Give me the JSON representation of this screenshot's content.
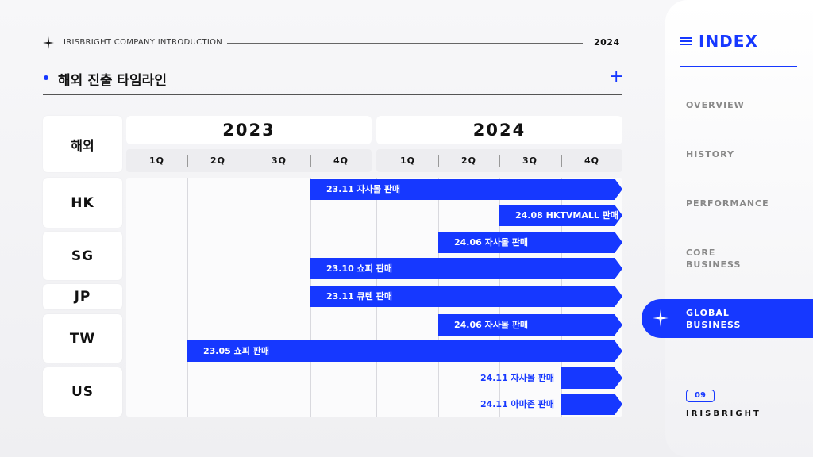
{
  "header": {
    "company": "IRISBRIGHT COMPANY INTRODUCTION",
    "year": "2024",
    "title": "해외 진출 타임라인",
    "plus_icon": "plus-icon"
  },
  "timeline": {
    "column_header": "해외",
    "years": [
      "2023",
      "2024"
    ],
    "quarters": [
      "1Q",
      "2Q",
      "3Q",
      "4Q",
      "1Q",
      "2Q",
      "3Q",
      "4Q"
    ],
    "countries": [
      "HK",
      "SG",
      "JP",
      "TW",
      "US"
    ],
    "bars": [
      {
        "label": "23.11 자사몰 판매"
      },
      {
        "label": "24.08 HKTVMALL 판매"
      },
      {
        "label": "24.06 자사몰 판매"
      },
      {
        "label": "23.10 쇼피 판매"
      },
      {
        "label": "23.11 큐텐 판매"
      },
      {
        "label": "24.06 자사몰 판매"
      },
      {
        "label": "23.05 쇼피 판매"
      },
      {
        "label": "24.11 자사몰 판매"
      },
      {
        "label": "24.11 아마존 판매"
      }
    ],
    "accent_color": "#1638ff"
  },
  "sidebar": {
    "title": "INDEX",
    "items": [
      {
        "label": "OVERVIEW"
      },
      {
        "label": "HISTORY"
      },
      {
        "label": "PERFORMANCE"
      },
      {
        "label_line1": "CORE",
        "label_line2": "BUSINESS"
      },
      {
        "label_line1": "GLOBAL",
        "label_line2": "BUSINESS"
      }
    ],
    "page_number": "09",
    "brand": "IRISBRIGHT"
  }
}
